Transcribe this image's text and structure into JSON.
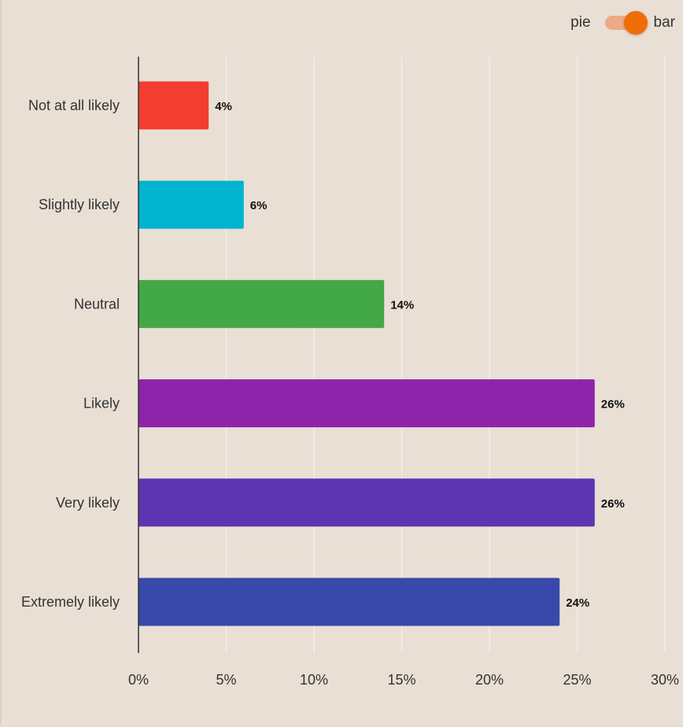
{
  "toggle": {
    "left_label": "pie",
    "right_label": "bar",
    "state": "bar",
    "track_color": "#eea987",
    "knob_color": "#f06d06"
  },
  "chart_data": {
    "type": "bar",
    "orientation": "horizontal",
    "categories": [
      "Not at all likely",
      "Slightly likely",
      "Neutral",
      "Likely",
      "Very likely",
      "Extremely likely"
    ],
    "values": [
      4,
      6,
      14,
      26,
      26,
      24
    ],
    "data_labels": [
      "4%",
      "6%",
      "14%",
      "26%",
      "26%",
      "24%"
    ],
    "colors": [
      "#f33d30",
      "#00b4d0",
      "#43a846",
      "#8e24aa",
      "#5e35b1",
      "#3949ab"
    ],
    "xlim": [
      0,
      30
    ],
    "xticks": [
      0,
      5,
      10,
      15,
      20,
      25,
      30
    ],
    "xtick_labels": [
      "0%",
      "5%",
      "10%",
      "15%",
      "20%",
      "25%",
      "30%"
    ],
    "grid": true,
    "legend": false
  }
}
